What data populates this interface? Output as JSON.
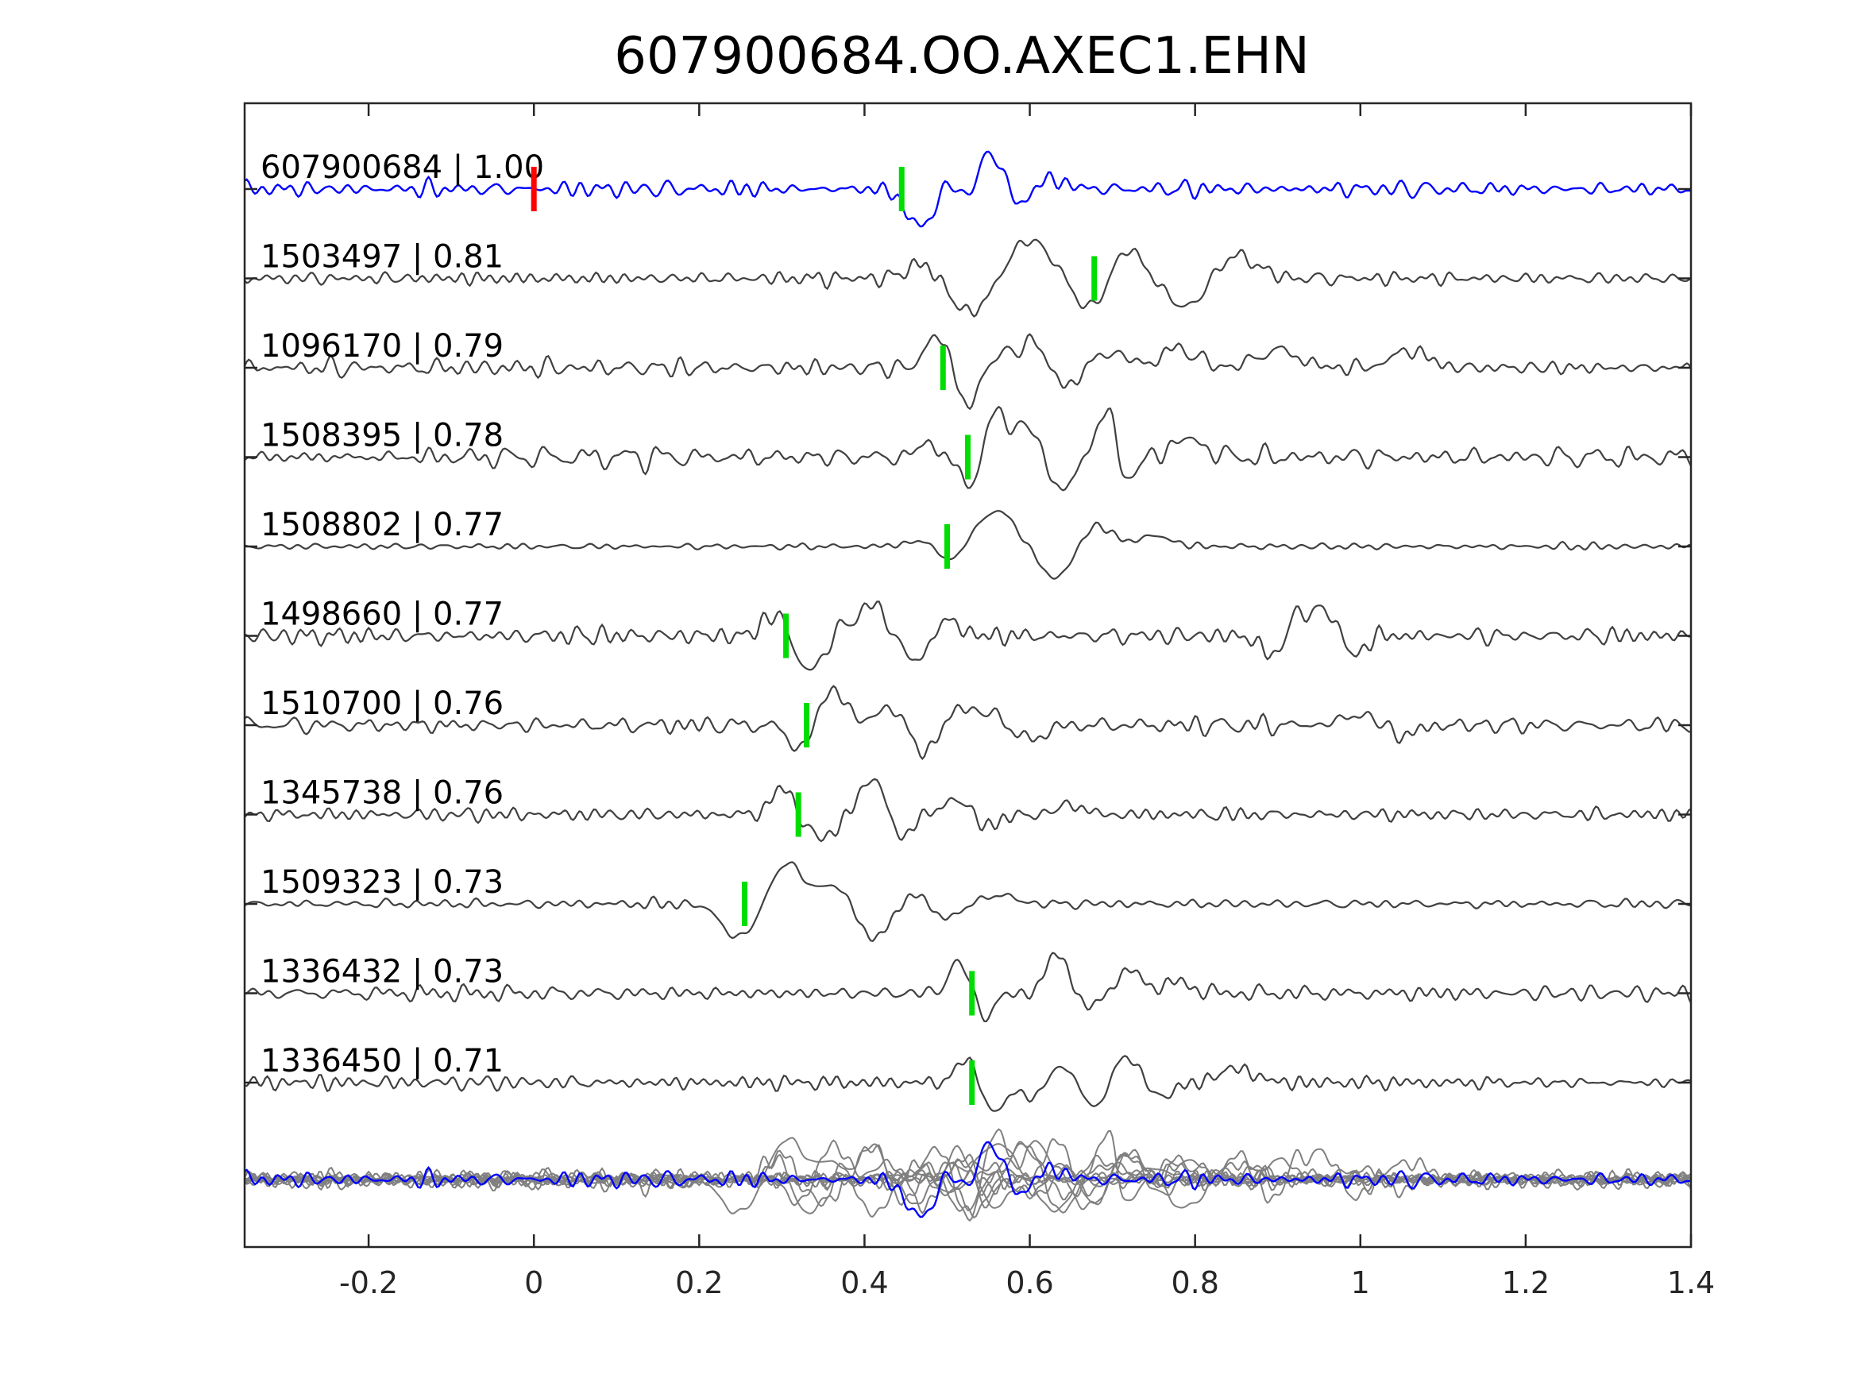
{
  "chart_data": {
    "type": "line",
    "title": "607900684.OO.AXEC1.EHN",
    "xlabel": "",
    "ylabel": "",
    "xlim": [
      -0.35,
      1.4
    ],
    "xticks": [
      -0.2,
      0,
      0.2,
      0.4,
      0.6,
      0.8,
      1,
      1.2,
      1.4
    ],
    "xtick_labels": [
      "-0.2",
      "0",
      "0.2",
      "0.4",
      "0.6",
      "0.8",
      "1",
      "1.2",
      "1.4"
    ],
    "grid": false,
    "colors": {
      "template": "#0000ff",
      "neighbor": "#404040",
      "stack_neighbor": "#808080",
      "origin_marker": "#ff0000",
      "pick_marker": "#00dd00",
      "axes": "#262626"
    },
    "origin_marker_time": 0.0,
    "series": [
      {
        "name": "607900684 | 1.00",
        "color": "#0000ff",
        "pick_time": 0.445,
        "events": [
          [
            0.46,
            0.2,
            -0.9,
            0.012
          ],
          [
            0.475,
            0.015,
            -1.6,
            0.03
          ],
          [
            0.505,
            0.015,
            1.2,
            0.018
          ],
          [
            0.525,
            0.015,
            -1.0,
            0.02
          ],
          [
            0.553,
            0.015,
            2.4,
            0.022
          ],
          [
            0.585,
            0.015,
            -1.2,
            0.022
          ],
          [
            0.62,
            0.015,
            0.6,
            0.03
          ]
        ],
        "noise": 0.35
      },
      {
        "name": "1503497 | 0.81",
        "color": "#404040",
        "pick_time": 0.678,
        "events": [
          [
            0.47,
            0.015,
            0.9,
            0.025
          ],
          [
            0.53,
            0.015,
            -2.0,
            0.035
          ],
          [
            0.6,
            0.015,
            2.2,
            0.04
          ],
          [
            0.675,
            0.015,
            -1.8,
            0.035
          ],
          [
            0.715,
            0.015,
            2.1,
            0.025
          ],
          [
            0.79,
            0.015,
            -1.7,
            0.03
          ],
          [
            0.85,
            0.015,
            1.3,
            0.035
          ]
        ],
        "noise": 0.3
      },
      {
        "name": "1096170 | 0.79",
        "color": "#404040",
        "pick_time": 0.495,
        "events": [
          [
            0.488,
            0.015,
            2.0,
            0.018
          ],
          [
            0.525,
            0.015,
            -2.0,
            0.02
          ],
          [
            0.565,
            0.015,
            1.0,
            0.015
          ],
          [
            0.605,
            0.015,
            1.6,
            0.022
          ],
          [
            0.64,
            0.015,
            -1.2,
            0.02
          ],
          [
            0.7,
            0.015,
            0.9,
            0.025
          ],
          [
            0.78,
            0.015,
            1.1,
            0.03
          ],
          [
            0.9,
            0.015,
            1.0,
            0.035
          ],
          [
            1.06,
            0.015,
            1.0,
            0.03
          ]
        ],
        "noise": 0.35
      },
      {
        "name": "1508395 | 0.78",
        "color": "#404040",
        "pick_time": 0.525,
        "events": [
          [
            0.48,
            0.015,
            0.8,
            0.02
          ],
          [
            0.525,
            0.015,
            -1.6,
            0.02
          ],
          [
            0.565,
            0.015,
            2.5,
            0.025
          ],
          [
            0.605,
            0.015,
            1.2,
            0.02
          ],
          [
            0.64,
            0.015,
            -2.0,
            0.022
          ],
          [
            0.69,
            0.015,
            2.4,
            0.02
          ],
          [
            0.72,
            0.015,
            -1.2,
            0.018
          ],
          [
            0.79,
            0.015,
            1.0,
            0.03
          ]
        ],
        "noise": 0.4
      },
      {
        "name": "1508802 | 0.77",
        "color": "#404040",
        "pick_time": 0.5,
        "events": [
          [
            0.47,
            0.015,
            0.3,
            0.03
          ],
          [
            0.505,
            0.015,
            -1.0,
            0.02
          ],
          [
            0.56,
            0.015,
            2.0,
            0.035
          ],
          [
            0.63,
            0.015,
            -1.8,
            0.03
          ],
          [
            0.68,
            0.015,
            1.3,
            0.025
          ],
          [
            0.75,
            0.015,
            0.6,
            0.03
          ]
        ],
        "noise": 0.15
      },
      {
        "name": "1498660 | 0.77",
        "color": "#404040",
        "pick_time": 0.305,
        "events": [
          [
            0.29,
            0.015,
            1.3,
            0.018
          ],
          [
            0.335,
            0.015,
            -2.0,
            0.022
          ],
          [
            0.37,
            0.015,
            0.5,
            0.015
          ],
          [
            0.41,
            0.015,
            1.8,
            0.025
          ],
          [
            0.46,
            0.015,
            -1.4,
            0.025
          ],
          [
            0.5,
            0.015,
            1.0,
            0.02
          ],
          [
            0.895,
            0.015,
            -1.2,
            0.02
          ],
          [
            0.925,
            0.015,
            1.5,
            0.018
          ],
          [
            0.96,
            0.015,
            1.6,
            0.018
          ],
          [
            0.99,
            0.015,
            -1.2,
            0.018
          ]
        ],
        "noise": 0.4
      },
      {
        "name": "1510700 | 0.76",
        "color": "#404040",
        "pick_time": 0.33,
        "events": [
          [
            0.325,
            0.015,
            -1.4,
            0.022
          ],
          [
            0.36,
            0.015,
            2.2,
            0.022
          ],
          [
            0.43,
            0.015,
            1.0,
            0.025
          ],
          [
            0.475,
            0.015,
            -1.6,
            0.025
          ],
          [
            0.51,
            0.015,
            1.2,
            0.02
          ],
          [
            0.55,
            0.015,
            0.8,
            0.02
          ],
          [
            0.6,
            0.015,
            -0.8,
            0.025
          ],
          [
            1.0,
            0.015,
            0.6,
            0.03
          ],
          [
            1.05,
            0.015,
            -0.6,
            0.025
          ]
        ],
        "noise": 0.4
      },
      {
        "name": "1345738 | 0.76",
        "color": "#404040",
        "pick_time": 0.32,
        "events": [
          [
            0.3,
            0.015,
            1.5,
            0.018
          ],
          [
            0.34,
            0.015,
            -1.0,
            0.018
          ],
          [
            0.36,
            0.015,
            -0.9,
            0.015
          ],
          [
            0.41,
            0.015,
            2.0,
            0.022
          ],
          [
            0.445,
            0.015,
            -1.4,
            0.018
          ],
          [
            0.51,
            0.015,
            0.8,
            0.025
          ],
          [
            0.55,
            0.015,
            -0.7,
            0.02
          ],
          [
            0.65,
            0.015,
            0.6,
            0.02
          ]
        ],
        "noise": 0.35
      },
      {
        "name": "1509323 | 0.73",
        "color": "#404040",
        "pick_time": 0.255,
        "events": [
          [
            0.25,
            0.015,
            -2.0,
            0.03
          ],
          [
            0.305,
            0.015,
            2.3,
            0.03
          ],
          [
            0.37,
            0.015,
            1.2,
            0.03
          ],
          [
            0.41,
            0.015,
            -2.2,
            0.03
          ],
          [
            0.455,
            0.015,
            0.7,
            0.025
          ],
          [
            0.5,
            0.015,
            -0.8,
            0.025
          ],
          [
            0.56,
            0.015,
            0.5,
            0.03
          ]
        ],
        "noise": 0.2
      },
      {
        "name": "1336432 | 0.73",
        "color": "#404040",
        "pick_time": 0.53,
        "events": [
          [
            0.515,
            0.015,
            1.8,
            0.018
          ],
          [
            0.545,
            0.015,
            -1.3,
            0.018
          ],
          [
            0.635,
            0.015,
            2.3,
            0.02
          ],
          [
            0.67,
            0.015,
            -1.0,
            0.02
          ],
          [
            0.72,
            0.015,
            1.2,
            0.025
          ],
          [
            0.78,
            0.015,
            0.6,
            0.025
          ]
        ],
        "noise": 0.4
      },
      {
        "name": "1336450 | 0.71",
        "color": "#404040",
        "pick_time": 0.53,
        "events": [
          [
            0.525,
            0.015,
            1.5,
            0.018
          ],
          [
            0.555,
            0.015,
            -1.7,
            0.02
          ],
          [
            0.6,
            0.015,
            -0.8,
            0.02
          ],
          [
            0.64,
            0.015,
            0.9,
            0.02
          ],
          [
            0.68,
            0.015,
            -1.5,
            0.02
          ],
          [
            0.715,
            0.015,
            1.7,
            0.02
          ],
          [
            0.76,
            0.015,
            -0.7,
            0.025
          ],
          [
            0.85,
            0.015,
            0.8,
            0.03
          ]
        ],
        "noise": 0.3
      }
    ],
    "stack": {
      "included": true,
      "template_on_top": true
    }
  }
}
